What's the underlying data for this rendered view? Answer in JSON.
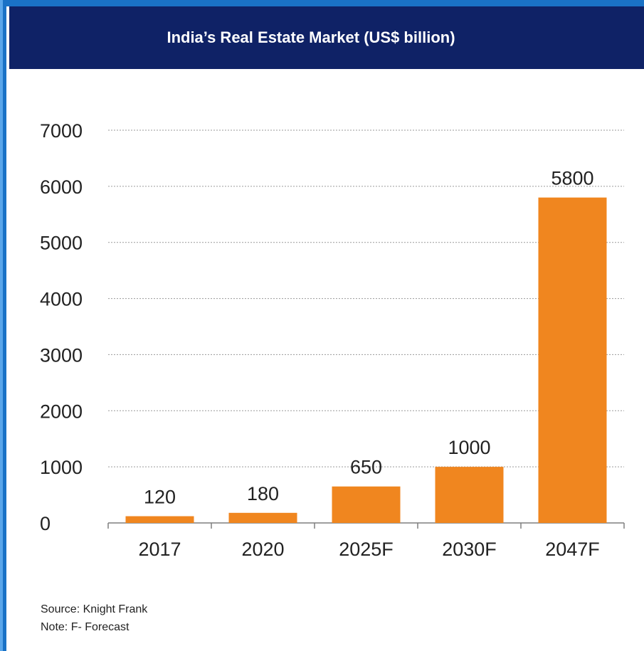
{
  "header": {
    "title": "India’s Real Estate Market (US$ billion)"
  },
  "chart_data": {
    "type": "bar",
    "title": "India’s Real Estate Market (US$ billion)",
    "categories": [
      "2017",
      "2020",
      "2025F",
      "2030F",
      "2047F"
    ],
    "values": [
      120,
      180,
      650,
      1000,
      5800
    ],
    "data_labels": [
      "120",
      "180",
      "650",
      "1000",
      "5800"
    ],
    "y_ticks": [
      0,
      1000,
      2000,
      3000,
      4000,
      5000,
      6000,
      7000
    ],
    "ylim": [
      0,
      7000
    ],
    "grid": true,
    "bar_color": "#f0861f",
    "xlabel": "",
    "ylabel": ""
  },
  "footer": {
    "source": "Source: Knight Frank",
    "note": "Note: F- Forecast"
  },
  "colors": {
    "header_bg": "#0f2266",
    "frame": "#1a72c6"
  }
}
